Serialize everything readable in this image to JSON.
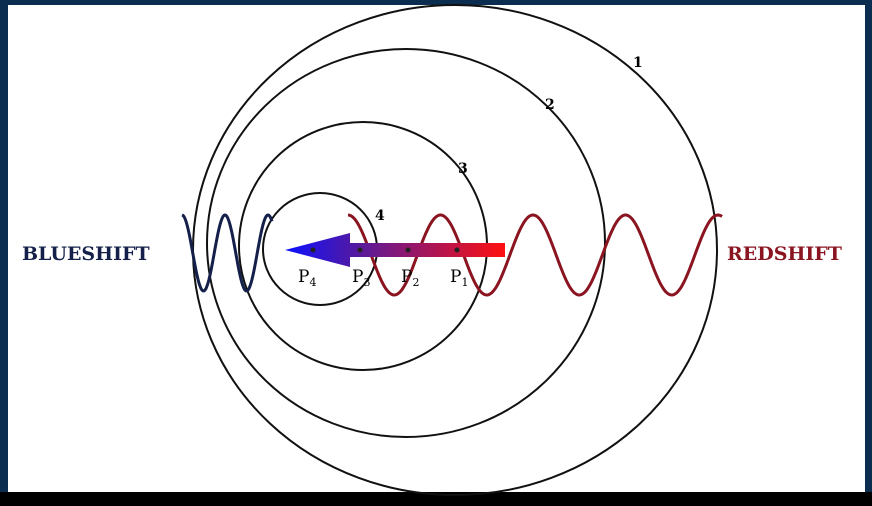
{
  "labels": {
    "left": "BLUESHIFT",
    "right": "REDSHIFT"
  },
  "circles": [
    {
      "label": "1"
    },
    {
      "label": "2"
    },
    {
      "label": "3"
    },
    {
      "label": "4"
    }
  ],
  "points": [
    {
      "letter": "P",
      "index": "1"
    },
    {
      "letter": "P",
      "index": "2"
    },
    {
      "letter": "P",
      "index": "3"
    },
    {
      "letter": "P",
      "index": "4"
    }
  ]
}
